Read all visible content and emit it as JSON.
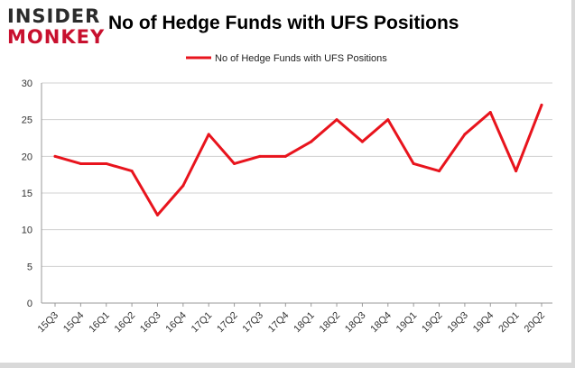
{
  "logo": {
    "line1": "INSIDER",
    "line2": "MONKEY"
  },
  "colors": {
    "series": "#e8141d",
    "grid": "#d0d0d0",
    "axis": "#999999",
    "brand_red": "#c8102e"
  },
  "chart_data": {
    "type": "line",
    "title": "No of Hedge Funds with UFS Positions",
    "xlabel": "",
    "ylabel": "",
    "ylim": [
      0,
      30
    ],
    "yticks": [
      0,
      5,
      10,
      15,
      20,
      25,
      30
    ],
    "grid": true,
    "legend_position": "top-center",
    "categories": [
      "15Q3",
      "15Q4",
      "16Q1",
      "16Q2",
      "16Q3",
      "16Q4",
      "17Q1",
      "17Q2",
      "17Q3",
      "17Q4",
      "18Q1",
      "18Q2",
      "18Q3",
      "18Q4",
      "19Q1",
      "19Q2",
      "19Q3",
      "19Q4",
      "20Q1",
      "20Q2"
    ],
    "series": [
      {
        "name": "No of Hedge Funds with UFS Positions",
        "values": [
          20,
          19,
          19,
          18,
          12,
          16,
          23,
          19,
          20,
          20,
          22,
          25,
          22,
          25,
          19,
          18,
          23,
          26,
          18,
          27
        ]
      }
    ]
  }
}
